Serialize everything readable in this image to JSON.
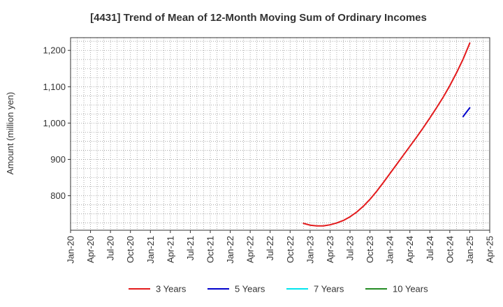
{
  "chart_data": {
    "type": "line",
    "title": "[4431]  Trend of Mean of 12-Month Moving Sum of Ordinary Incomes",
    "xlabel": "",
    "ylabel": "Amount (million yen)",
    "x_tick_labels": [
      "Jan-20",
      "Apr-20",
      "Jul-20",
      "Oct-20",
      "Jan-21",
      "Apr-21",
      "Jul-21",
      "Oct-21",
      "Jan-22",
      "Apr-22",
      "Jul-22",
      "Oct-22",
      "Jan-23",
      "Apr-23",
      "Jul-23",
      "Oct-23",
      "Jan-24",
      "Apr-24",
      "Jul-24",
      "Oct-24",
      "Jan-25",
      "Apr-25"
    ],
    "xlim": [
      "2020-01",
      "2025-04"
    ],
    "y_ticks": [
      800,
      900,
      1000,
      1100,
      1200
    ],
    "y_tick_labels": [
      "800",
      "900",
      "1,000",
      "1,100",
      "1,200"
    ],
    "ylim": [
      705,
      1235
    ],
    "grid": true,
    "legend_position": "bottom",
    "series": [
      {
        "name": "3 Years",
        "color": "#e31a1c",
        "points": [
          [
            "2022-12",
            724
          ],
          [
            "2023-01",
            719
          ],
          [
            "2023-02",
            717
          ],
          [
            "2023-03",
            717
          ],
          [
            "2023-04",
            720
          ],
          [
            "2023-05",
            725
          ],
          [
            "2023-06",
            732
          ],
          [
            "2023-07",
            742
          ],
          [
            "2023-08",
            755
          ],
          [
            "2023-09",
            771
          ],
          [
            "2023-10",
            790
          ],
          [
            "2023-11",
            812
          ],
          [
            "2023-12",
            836
          ],
          [
            "2024-01",
            861
          ],
          [
            "2024-02",
            886
          ],
          [
            "2024-03",
            911
          ],
          [
            "2024-04",
            936
          ],
          [
            "2024-05",
            961
          ],
          [
            "2024-06",
            987
          ],
          [
            "2024-07",
            1014
          ],
          [
            "2024-08",
            1042
          ],
          [
            "2024-09",
            1071
          ],
          [
            "2024-10",
            1103
          ],
          [
            "2024-11",
            1138
          ],
          [
            "2024-12",
            1176
          ],
          [
            "2025-01",
            1220
          ]
        ]
      },
      {
        "name": "5 Years",
        "color": "#0000cc",
        "points": [
          [
            "2024-12",
            1018
          ],
          [
            "2025-01",
            1042
          ]
        ]
      },
      {
        "name": "7 Years",
        "color": "#00e5ee",
        "points": []
      },
      {
        "name": "10 Years",
        "color": "#228b22",
        "points": []
      }
    ]
  }
}
